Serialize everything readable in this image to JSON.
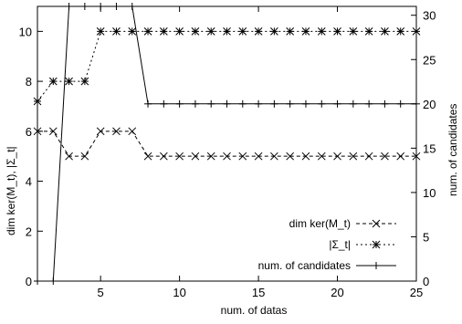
{
  "chart_data": {
    "type": "line",
    "xlabel": "num. of datas",
    "ylabel_left": "dim ker(M_t), |Σ_t|",
    "ylabel_right": "num. of candidates",
    "xlim": [
      1,
      25
    ],
    "ylim_left": [
      0,
      11
    ],
    "ylim_right": [
      0,
      31
    ],
    "x_ticks": [
      5,
      10,
      15,
      20,
      25
    ],
    "y_left_ticks": [
      0,
      2,
      4,
      6,
      8,
      10
    ],
    "y_right_ticks": [
      0,
      5,
      10,
      15,
      20,
      25,
      30
    ],
    "grid": false,
    "legend_position": "bottom-right",
    "series": [
      {
        "name": "dim ker(M_t)",
        "axis": "left",
        "line_style": "dashed",
        "marker": "x",
        "x": [
          1,
          2,
          3,
          4,
          5,
          6,
          7,
          8,
          9,
          10,
          11,
          12,
          13,
          14,
          15,
          16,
          17,
          18,
          19,
          20,
          21,
          22,
          23,
          24,
          25
        ],
        "values": [
          6,
          6,
          5,
          5,
          6,
          6,
          6,
          5,
          5,
          5,
          5,
          5,
          5,
          5,
          5,
          5,
          5,
          5,
          5,
          5,
          5,
          5,
          5,
          5,
          5
        ]
      },
      {
        "name": "|Σ_t|",
        "axis": "left",
        "line_style": "dotted",
        "marker": "star",
        "x": [
          1,
          2,
          3,
          4,
          5,
          6,
          7,
          8,
          9,
          10,
          11,
          12,
          13,
          14,
          15,
          16,
          17,
          18,
          19,
          20,
          21,
          22,
          23,
          24,
          25
        ],
        "values": [
          7.2,
          8,
          8,
          8,
          10,
          10,
          10,
          10,
          10,
          10,
          10,
          10,
          10,
          10,
          10,
          10,
          10,
          10,
          10,
          10,
          10,
          10,
          10,
          10,
          10
        ]
      },
      {
        "name": "num. of candidates",
        "axis": "right",
        "line_style": "solid",
        "marker": "plus",
        "x": [
          1,
          2,
          3,
          4,
          5,
          6,
          7,
          8,
          9,
          10,
          11,
          12,
          13,
          14,
          15,
          16,
          17,
          18,
          19,
          20,
          21,
          22,
          23,
          24,
          25
        ],
        "values": [
          0,
          0,
          31,
          31,
          31,
          31,
          31,
          20,
          20,
          20,
          20,
          20,
          20,
          20,
          20,
          20,
          20,
          20,
          20,
          20,
          20,
          20,
          20,
          20,
          20
        ]
      }
    ]
  }
}
